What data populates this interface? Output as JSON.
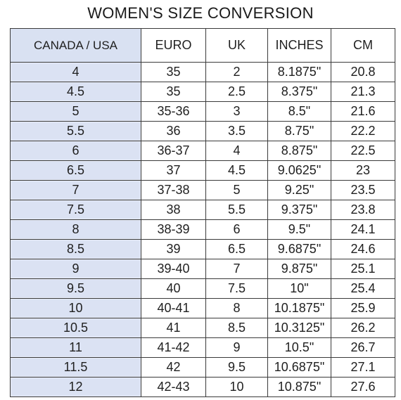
{
  "title": "WOMEN'S SIZE CONVERSION",
  "colors": {
    "first_column_bg": "#dbe2f3",
    "border": "#3a3a3a"
  },
  "table": {
    "headers": [
      "CANADA / USA",
      "EURO",
      "UK",
      "INCHES",
      "CM"
    ],
    "rows": [
      [
        "4",
        "35",
        "2",
        "8.1875\"",
        "20.8"
      ],
      [
        "4.5",
        "35",
        "2.5",
        "8.375\"",
        "21.3"
      ],
      [
        "5",
        "35-36",
        "3",
        "8.5\"",
        "21.6"
      ],
      [
        "5.5",
        "36",
        "3.5",
        "8.75\"",
        "22.2"
      ],
      [
        "6",
        "36-37",
        "4",
        "8.875\"",
        "22.5"
      ],
      [
        "6.5",
        "37",
        "4.5",
        "9.0625\"",
        "23"
      ],
      [
        "7",
        "37-38",
        "5",
        "9.25\"",
        "23.5"
      ],
      [
        "7.5",
        "38",
        "5.5",
        "9.375\"",
        "23.8"
      ],
      [
        "8",
        "38-39",
        "6",
        "9.5\"",
        "24.1"
      ],
      [
        "8.5",
        "39",
        "6.5",
        "9.6875\"",
        "24.6"
      ],
      [
        "9",
        "39-40",
        "7",
        "9.875\"",
        "25.1"
      ],
      [
        "9.5",
        "40",
        "7.5",
        "10\"",
        "25.4"
      ],
      [
        "10",
        "40-41",
        "8",
        "10.1875\"",
        "25.9"
      ],
      [
        "10.5",
        "41",
        "8.5",
        "10.3125\"",
        "26.2"
      ],
      [
        "11",
        "41-42",
        "9",
        "10.5\"",
        "26.7"
      ],
      [
        "11.5",
        "42",
        "9.5",
        "10.6875\"",
        "27.1"
      ],
      [
        "12",
        "42-43",
        "10",
        "10.875\"",
        "27.6"
      ]
    ]
  }
}
